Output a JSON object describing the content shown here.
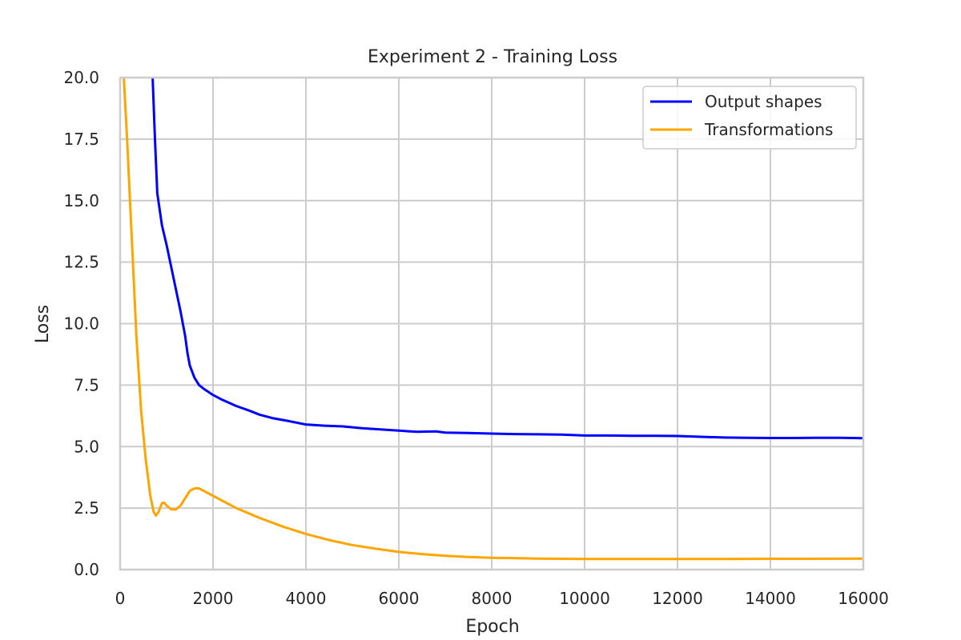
{
  "chart_data": {
    "type": "line",
    "title": "Experiment 2 - Training Loss",
    "xlabel": "Epoch",
    "ylabel": "Loss",
    "xlim": [
      0,
      16000
    ],
    "ylim": [
      0,
      20
    ],
    "xticks": [
      0,
      2000,
      4000,
      6000,
      8000,
      10000,
      12000,
      14000,
      16000
    ],
    "xtick_labels": [
      "0",
      "2000",
      "4000",
      "6000",
      "8000",
      "10000",
      "12000",
      "14000",
      "16000"
    ],
    "yticks": [
      0,
      2.5,
      5,
      7.5,
      10,
      12.5,
      15,
      17.5,
      20
    ],
    "ytick_labels": [
      "0.0",
      "2.5",
      "5.0",
      "7.5",
      "10.0",
      "12.5",
      "15.0",
      "17.5",
      "20.0"
    ],
    "grid": true,
    "legend_position": "top-right",
    "series": [
      {
        "name": "Output shapes",
        "color": "#0000ff",
        "points": [
          [
            700,
            20
          ],
          [
            750,
            17.5
          ],
          [
            800,
            15.3
          ],
          [
            900,
            14.0
          ],
          [
            1000,
            13.2
          ],
          [
            1100,
            12.3
          ],
          [
            1200,
            11.4
          ],
          [
            1300,
            10.5
          ],
          [
            1400,
            9.5
          ],
          [
            1450,
            8.8
          ],
          [
            1500,
            8.3
          ],
          [
            1600,
            7.8
          ],
          [
            1700,
            7.5
          ],
          [
            1800,
            7.35
          ],
          [
            2000,
            7.1
          ],
          [
            2200,
            6.9
          ],
          [
            2500,
            6.65
          ],
          [
            2800,
            6.45
          ],
          [
            3000,
            6.3
          ],
          [
            3300,
            6.15
          ],
          [
            3600,
            6.05
          ],
          [
            4000,
            5.9
          ],
          [
            4400,
            5.85
          ],
          [
            4800,
            5.82
          ],
          [
            5200,
            5.75
          ],
          [
            5600,
            5.7
          ],
          [
            6000,
            5.65
          ],
          [
            6400,
            5.6
          ],
          [
            6800,
            5.62
          ],
          [
            7000,
            5.57
          ],
          [
            7500,
            5.55
          ],
          [
            8000,
            5.53
          ],
          [
            8500,
            5.51
          ],
          [
            9000,
            5.5
          ],
          [
            9500,
            5.49
          ],
          [
            10000,
            5.45
          ],
          [
            10500,
            5.45
          ],
          [
            11000,
            5.44
          ],
          [
            11500,
            5.44
          ],
          [
            12000,
            5.43
          ],
          [
            12500,
            5.4
          ],
          [
            13000,
            5.37
          ],
          [
            13500,
            5.36
          ],
          [
            14000,
            5.35
          ],
          [
            14500,
            5.35
          ],
          [
            15000,
            5.36
          ],
          [
            15500,
            5.36
          ],
          [
            16000,
            5.34
          ]
        ]
      },
      {
        "name": "Transformations",
        "color": "#ffa500",
        "points": [
          [
            80,
            20
          ],
          [
            150,
            17.5
          ],
          [
            250,
            13.5
          ],
          [
            350,
            9.5
          ],
          [
            450,
            6.5
          ],
          [
            550,
            4.5
          ],
          [
            650,
            3.0
          ],
          [
            720,
            2.35
          ],
          [
            770,
            2.2
          ],
          [
            830,
            2.35
          ],
          [
            900,
            2.7
          ],
          [
            950,
            2.72
          ],
          [
            1000,
            2.6
          ],
          [
            1100,
            2.45
          ],
          [
            1200,
            2.45
          ],
          [
            1300,
            2.6
          ],
          [
            1400,
            2.9
          ],
          [
            1500,
            3.2
          ],
          [
            1600,
            3.3
          ],
          [
            1700,
            3.3
          ],
          [
            1800,
            3.2
          ],
          [
            2000,
            3.0
          ],
          [
            2200,
            2.8
          ],
          [
            2500,
            2.5
          ],
          [
            3000,
            2.1
          ],
          [
            3500,
            1.75
          ],
          [
            4000,
            1.45
          ],
          [
            4500,
            1.2
          ],
          [
            5000,
            1.0
          ],
          [
            5500,
            0.85
          ],
          [
            6000,
            0.72
          ],
          [
            6500,
            0.63
          ],
          [
            7000,
            0.56
          ],
          [
            7500,
            0.51
          ],
          [
            8000,
            0.48
          ],
          [
            9000,
            0.45
          ],
          [
            10000,
            0.43
          ],
          [
            11000,
            0.43
          ],
          [
            12000,
            0.43
          ],
          [
            13000,
            0.43
          ],
          [
            14000,
            0.44
          ],
          [
            15000,
            0.44
          ],
          [
            16000,
            0.45
          ]
        ]
      }
    ]
  }
}
